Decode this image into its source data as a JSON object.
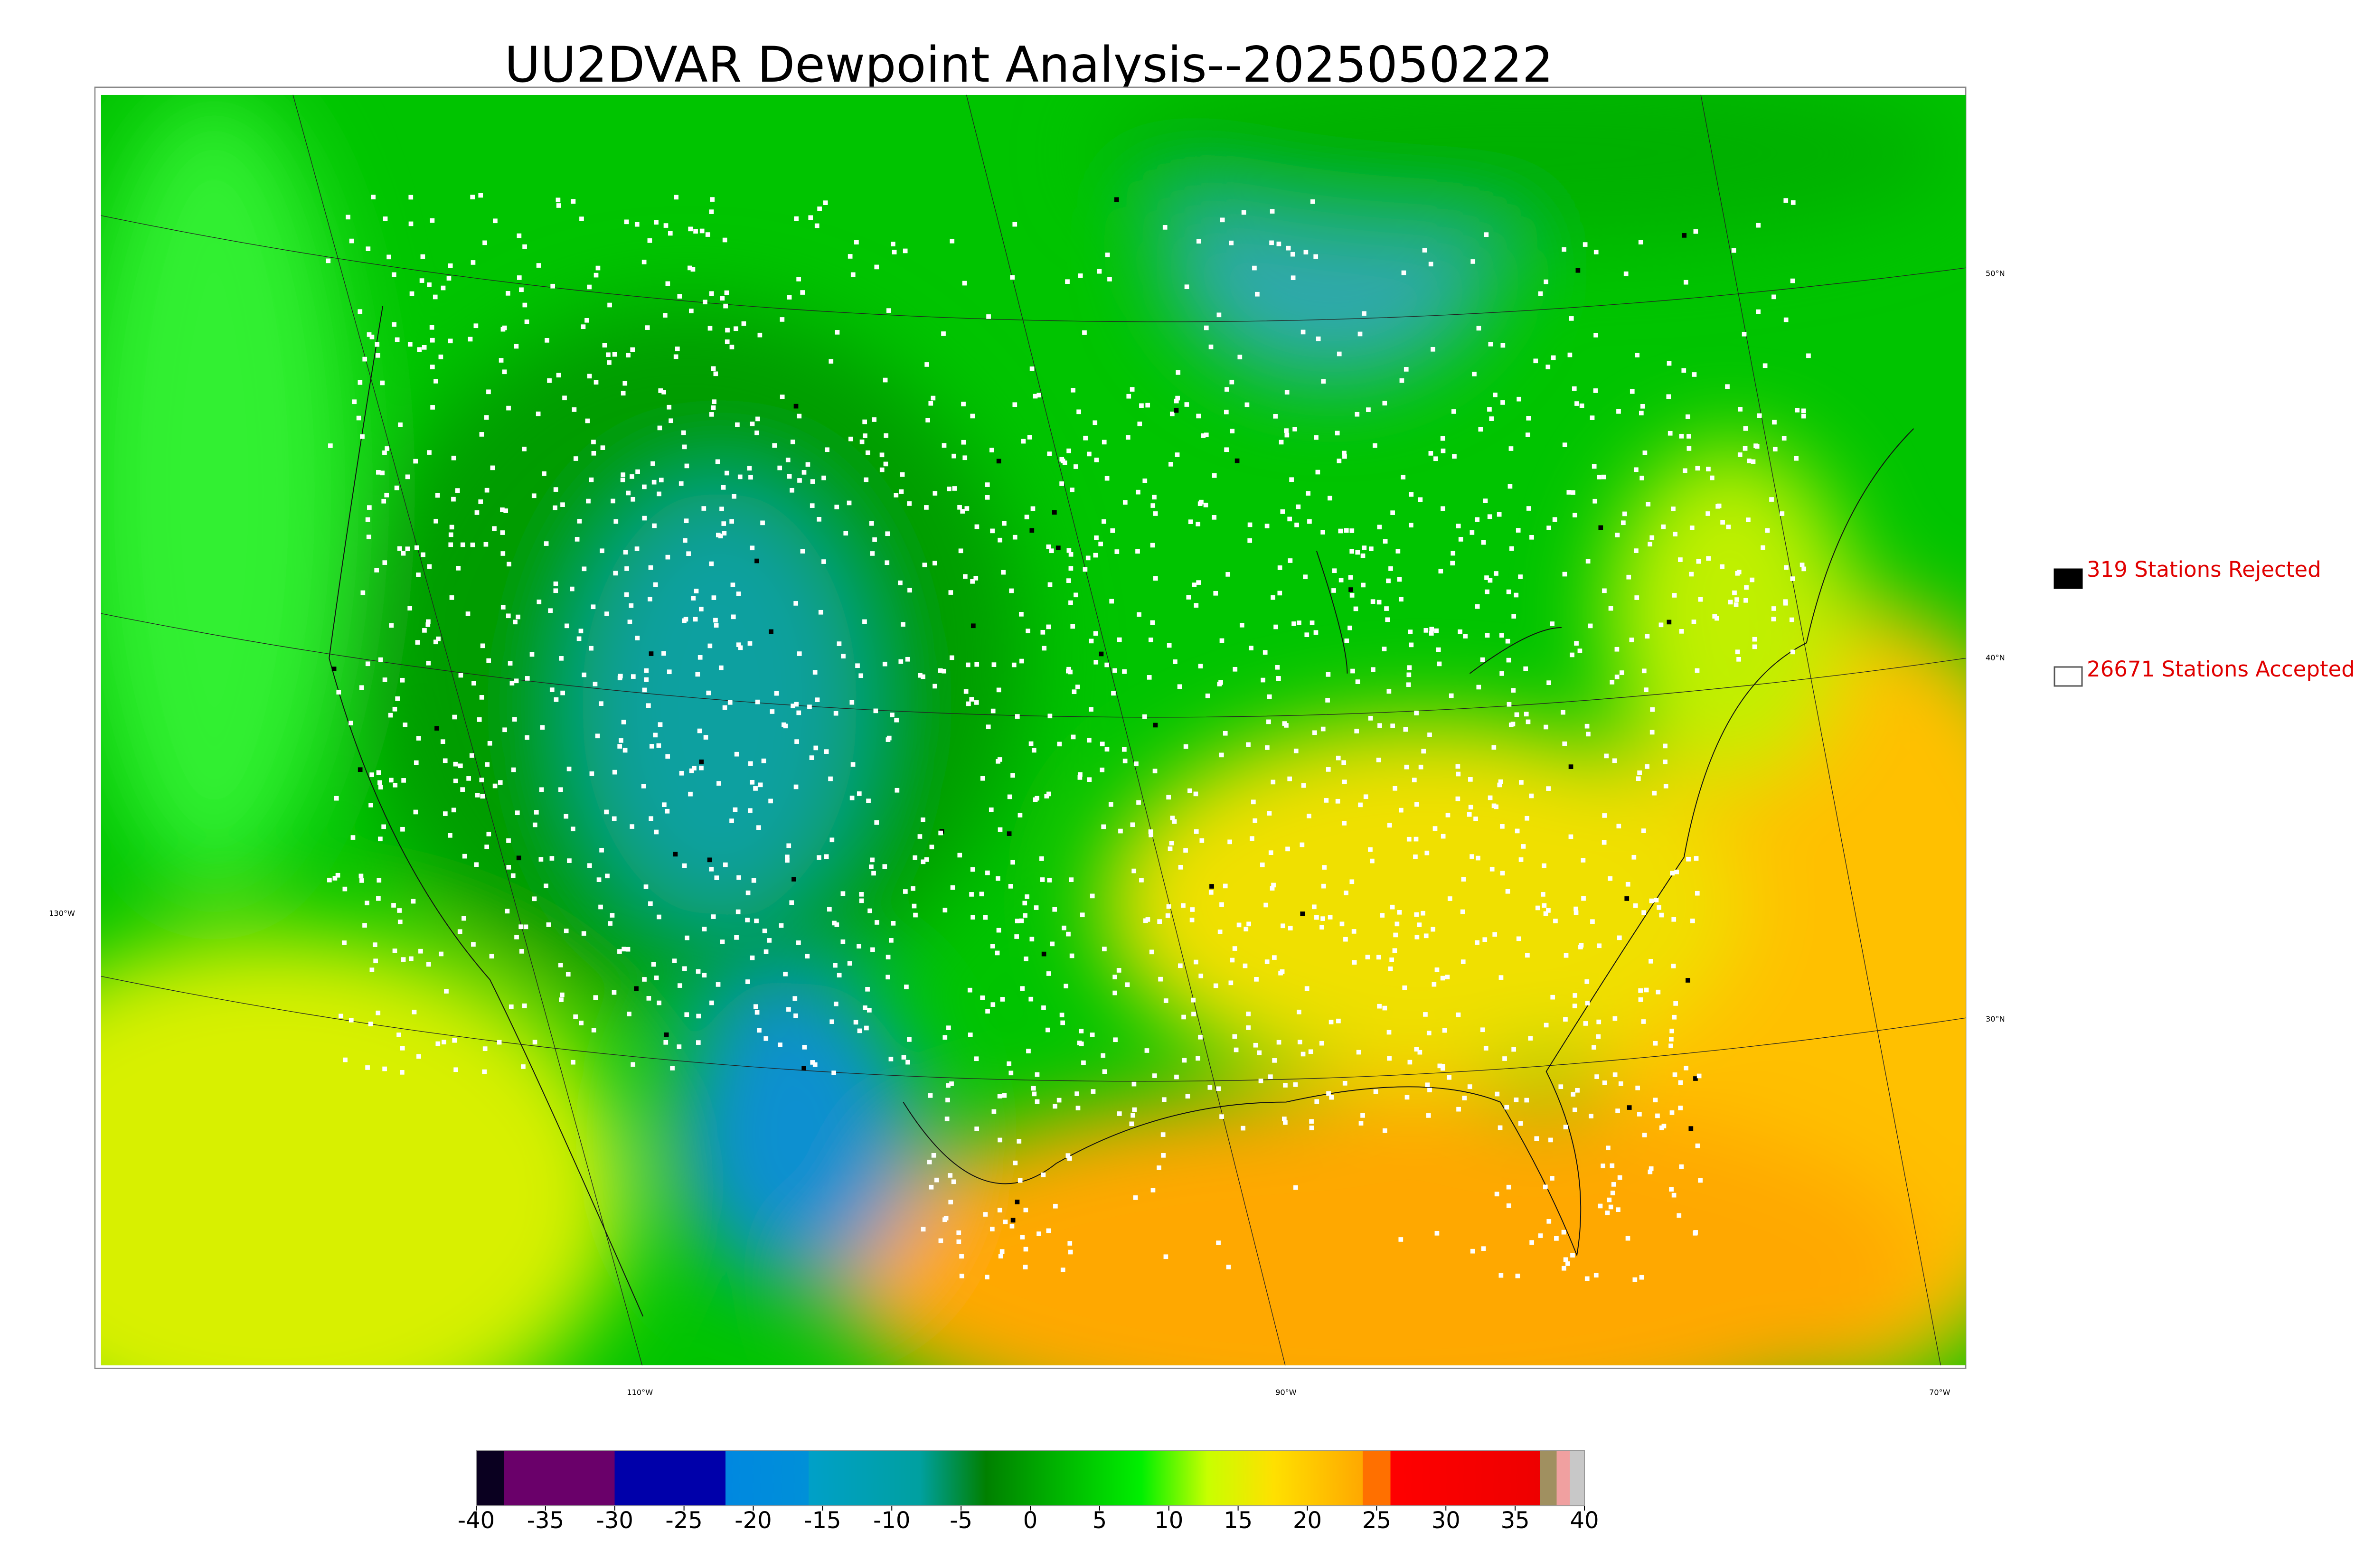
{
  "title": "UU2DVAR Dewpoint Analysis--2025050222",
  "legend": [
    {
      "label": "319 Stations Rejected",
      "color": "#000000"
    },
    {
      "label": "26671 Stations Accepted",
      "color": "#ffffff"
    }
  ],
  "colorbar": {
    "range": [
      -40,
      40
    ],
    "ticks": [
      -40,
      -35,
      -30,
      -25,
      -20,
      -15,
      -10,
      -5,
      0,
      5,
      10,
      15,
      20,
      25,
      30,
      35,
      40
    ]
  },
  "graticule": {
    "latitudes": [
      "50°N",
      "40°N",
      "30°N"
    ],
    "longitudes": [
      "130°W",
      "110°W",
      "90°W",
      "70°W"
    ]
  }
}
